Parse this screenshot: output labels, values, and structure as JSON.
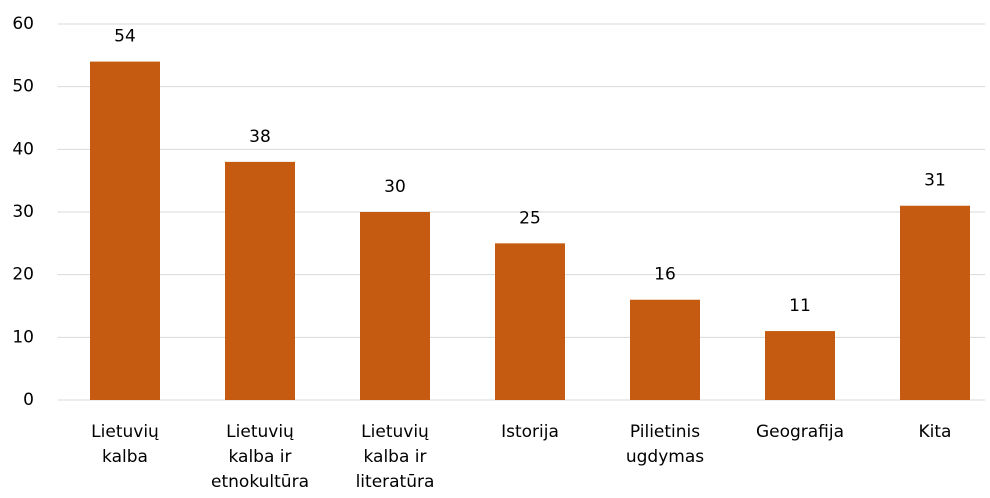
{
  "chart_data": {
    "type": "bar",
    "categories": [
      "Lietuvių kalba",
      "Lietuvių kalba ir etnokultūra",
      "Lietuvių kalba ir literatūra",
      "Istorija",
      "Pilietinis ugdymas",
      "Geografija",
      "Kita"
    ],
    "values": [
      54,
      38,
      30,
      25,
      16,
      11,
      31
    ],
    "color": "#c55a11",
    "ylim": [
      0,
      60
    ],
    "yticks": [
      0,
      10,
      20,
      30,
      40,
      50,
      60
    ],
    "grid": true
  }
}
